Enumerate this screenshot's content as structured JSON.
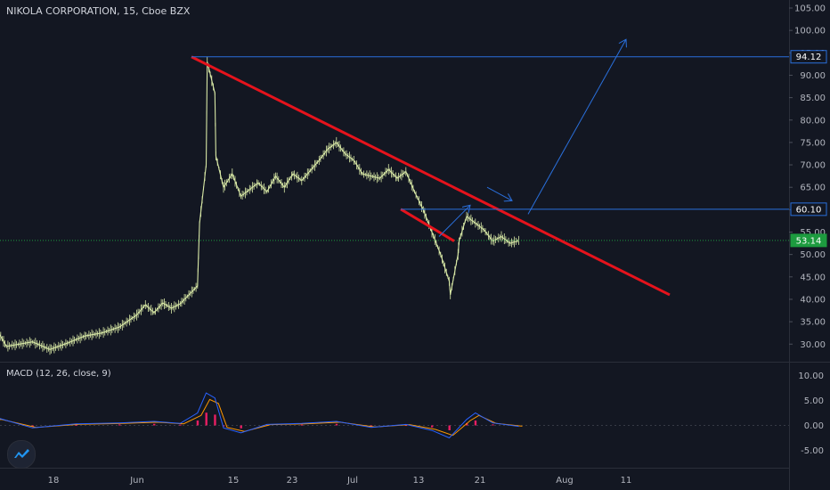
{
  "header": {
    "title": "NIKOLA CORPORATION, 15, Cboe BZX"
  },
  "macd": {
    "title": "MACD (12, 26, close, 9)",
    "y_ticks": [
      "10.00",
      "5.00",
      "0.00",
      "-5.00"
    ]
  },
  "colors": {
    "background": "#131722",
    "price": "#d8e8a6",
    "trendline": "#e5131c",
    "blue_lines": "#2a6fdb",
    "green_tag": "#1d9b3f",
    "macd_line": "#2962ff",
    "signal_line": "#ff9800",
    "histogram": "#e91e63"
  },
  "price_axis": {
    "ticks": [
      "105.00",
      "100.00",
      "95.00",
      "90.00",
      "85.00",
      "80.00",
      "75.00",
      "70.00",
      "65.00",
      "60.00",
      "55.00",
      "50.00",
      "45.00",
      "40.00",
      "35.00",
      "30.00"
    ]
  },
  "price_tags": [
    {
      "label": "94.12",
      "value": 94.12,
      "style": "blue"
    },
    {
      "label": "60.10",
      "value": 60.1,
      "style": "blue"
    },
    {
      "label": "53.14",
      "value": 53.14,
      "style": "green"
    }
  ],
  "time_axis": {
    "ticks": [
      "18",
      "Jun",
      "15",
      "23",
      "Jul",
      "13",
      "21",
      "Aug",
      "11"
    ]
  },
  "chart_data": {
    "type": "line",
    "title": "NIKOLA CORPORATION, 15, Cboe BZX",
    "price_range": [
      26,
      107
    ],
    "series": [
      {
        "points": [
          [
            "May 14",
            31.5
          ],
          [
            "May 15",
            36.2
          ],
          [
            "May 17",
            29.5
          ],
          [
            "May 20",
            30.5
          ],
          [
            "May 22",
            28.8
          ],
          [
            "May 24",
            30.2
          ],
          [
            "May 26",
            31.8
          ],
          [
            "May 28",
            32.5
          ],
          [
            "May 30",
            33.8
          ],
          [
            "Jun 1",
            36.5
          ],
          [
            "Jun 2",
            38.8
          ],
          [
            "Jun 3",
            37.0
          ],
          [
            "Jun 4",
            39.2
          ],
          [
            "Jun 5",
            38.0
          ],
          [
            "Jun 6",
            39.0
          ],
          [
            "Jun 8",
            43.0
          ],
          [
            "Jun 8",
            50.0
          ],
          [
            "Jun 8",
            57.0
          ],
          [
            "Jun 9",
            70.0
          ],
          [
            "Jun 9",
            93.0
          ],
          [
            "Jun 10",
            86.0
          ],
          [
            "Jun 10",
            72.0
          ],
          [
            "Jun 11",
            65.0
          ],
          [
            "Jun 12",
            68.0
          ],
          [
            "Jun 13",
            63.0
          ],
          [
            "Jun 15",
            66.0
          ],
          [
            "Jun 16",
            64.0
          ],
          [
            "Jun 17",
            67.5
          ],
          [
            "Jun 18",
            65.0
          ],
          [
            "Jun 19",
            68.0
          ],
          [
            "Jun 20",
            66.5
          ],
          [
            "Jun 22",
            71.0
          ],
          [
            "Jun 23",
            73.5
          ],
          [
            "Jun 24",
            75.0
          ],
          [
            "Jun 25",
            72.5
          ],
          [
            "Jun 26",
            71.0
          ],
          [
            "Jun 27",
            68.0
          ],
          [
            "Jun 29",
            67.0
          ],
          [
            "Jun 30",
            69.0
          ],
          [
            "Jul 1",
            67.0
          ],
          [
            "Jul 2",
            68.5
          ],
          [
            "Jul 3",
            64.0
          ],
          [
            "Jul 4",
            60.0
          ],
          [
            "Jul 5",
            55.0
          ],
          [
            "Jul 6",
            50.0
          ],
          [
            "Jul 7",
            44.0
          ],
          [
            "Jul 7",
            41.0
          ],
          [
            "Jul 8",
            50.0
          ],
          [
            "Jul 8",
            53.0
          ],
          [
            "Jul 9",
            58.5
          ],
          [
            "Jul 10",
            57.0
          ],
          [
            "Jul 11",
            55.5
          ],
          [
            "Jul 12",
            53.0
          ],
          [
            "Jul 13",
            54.0
          ],
          [
            "Jul 14",
            52.5
          ],
          [
            "Jul 15",
            53.14
          ]
        ]
      }
    ],
    "drawings": [
      {
        "type": "trendline",
        "color": "red",
        "from": [
          "Jun 9",
          94.12
        ],
        "to": [
          "Aug 18",
          41.0
        ]
      },
      {
        "type": "trendline",
        "color": "red",
        "from": [
          "Jul 10",
          60.1
        ],
        "to": [
          "Jul 17",
          53.0
        ]
      },
      {
        "type": "horizontal_line",
        "color": "blue",
        "value": 94.12
      },
      {
        "type": "horizontal_line",
        "color": "blue",
        "value": 60.1
      },
      {
        "type": "arrow",
        "color": "blue",
        "from": [
          "Jul 14",
          54.0
        ],
        "to": [
          "Jul 20",
          61.0
        ]
      },
      {
        "type": "arrow",
        "color": "blue",
        "from": [
          "Jul 23",
          65.0
        ],
        "to": [
          "Jul 28",
          62.0
        ]
      },
      {
        "type": "arrow",
        "color": "blue",
        "from": [
          "Jul 29",
          59.0
        ],
        "to": [
          "Aug 11",
          98.0
        ]
      }
    ],
    "macd": {
      "range": [
        -8,
        11
      ],
      "values": [
        [
          "May 14",
          0.8
        ],
        [
          "May 16",
          1.5
        ],
        [
          "May 20",
          -0.5
        ],
        [
          "May 25",
          0.3
        ],
        [
          "May 30",
          0.5
        ],
        [
          "Jun 3",
          0.8
        ],
        [
          "Jun 6",
          0.4
        ],
        [
          "Jun 8",
          2.5
        ],
        [
          "Jun 9",
          6.5
        ],
        [
          "Jun 10",
          5.5
        ],
        [
          "Jun 11",
          -0.5
        ],
        [
          "Jun 13",
          -1.5
        ],
        [
          "Jun 16",
          0.2
        ],
        [
          "Jun 20",
          0.4
        ],
        [
          "Jun 24",
          0.8
        ],
        [
          "Jun 28",
          -0.4
        ],
        [
          "Jul 2",
          0.2
        ],
        [
          "Jul 5",
          -1.0
        ],
        [
          "Jul 7",
          -2.5
        ],
        [
          "Jul 9",
          1.2
        ],
        [
          "Jul 10",
          2.5
        ],
        [
          "Jul 12",
          0.5
        ],
        [
          "Jul 15",
          -0.2
        ]
      ]
    }
  }
}
